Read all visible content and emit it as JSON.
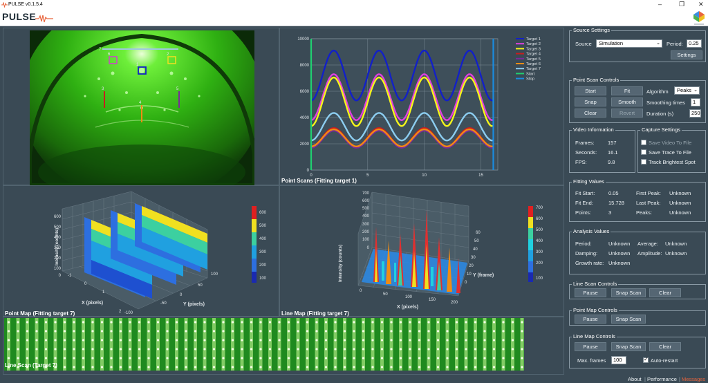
{
  "window": {
    "title": "PULSE v0.1.5.4",
    "minimize": "–",
    "restore": "❐",
    "close": "✕"
  },
  "app": {
    "name": "PULSE"
  },
  "video": {
    "target_labels": [
      "7",
      "6",
      "1",
      "2",
      "3",
      "4",
      "5"
    ]
  },
  "point_scan_chart": {
    "caption": "Point Scans (Fitting target 1)"
  },
  "chart_data": [
    {
      "type": "line",
      "title": "",
      "xlabel": "",
      "ylabel": "",
      "xlim": [
        0,
        16.5
      ],
      "ylim": [
        0,
        10000
      ],
      "xticks": [
        0,
        5,
        10,
        15
      ],
      "yticks": [
        0,
        2000,
        4000,
        6000,
        8000,
        10000
      ],
      "grid": true,
      "legend_position": "right",
      "series": [
        {
          "name": "Target 1",
          "color": "#1220c8",
          "mean": 7200,
          "amp": 1900
        },
        {
          "name": "Target 2",
          "color": "#e040e0",
          "mean": 5550,
          "amp": 1750
        },
        {
          "name": "Target 3",
          "color": "#f5f51a",
          "mean": 5200,
          "amp": 1850
        },
        {
          "name": "Target 4",
          "color": "#c81e1e",
          "mean": 2500,
          "amp": 700
        },
        {
          "name": "Target 5",
          "color": "#7a2a9a",
          "mean": 2350,
          "amp": 650
        },
        {
          "name": "Target 6",
          "color": "#f08c14",
          "mean": 2450,
          "amp": 650
        },
        {
          "name": "Target 7",
          "color": "#8ccdf0",
          "mean": 3300,
          "amp": 1050
        },
        {
          "name": "Start",
          "color": "#20d070",
          "x": 0
        },
        {
          "name": "Stop",
          "color": "#1a8ce0",
          "x": 16.1
        }
      ],
      "period": 4.0
    },
    {
      "type": "surface3d",
      "name": "point-map",
      "xlabel": "X (pixels)",
      "ylabel": "Y (pixels)",
      "zlabel": "Intensity (counts)",
      "xticks": [
        -1,
        0,
        1,
        2
      ],
      "yticks": [
        -100,
        -50,
        0,
        50,
        100
      ],
      "zticks": [
        0,
        100,
        200,
        300,
        400,
        500,
        600
      ],
      "colorbar_ticks": [
        100,
        200,
        300,
        400,
        500,
        600
      ]
    },
    {
      "type": "surface3d",
      "name": "line-map",
      "xlabel": "X (pixels)",
      "ylabel": "Y (frame)",
      "zlabel": "Intensity (counts)",
      "xticks": [
        0,
        50,
        100,
        150,
        200
      ],
      "yticks": [
        0,
        10,
        20,
        30,
        40,
        50,
        60
      ],
      "zticks": [
        0,
        100,
        200,
        300,
        400,
        500,
        600,
        700
      ],
      "colorbar_ticks": [
        100,
        200,
        300,
        400,
        500,
        600,
        700
      ]
    }
  ],
  "captions": {
    "point_map": "Point Map (Fitting target 7)",
    "line_map": "Line Map (Fitting target 7)",
    "line_scan": "Line Scan (Target 7)"
  },
  "source_settings": {
    "title": "Source Settings",
    "source_label": "Source",
    "source_value": "Simulation",
    "period_label": "Period:",
    "period_value": "0.25",
    "settings_button": "Settings"
  },
  "point_scan_controls": {
    "title": "Point Scan Controls",
    "start": "Start",
    "fit": "Fit",
    "snap": "Snap",
    "smooth": "Smooth",
    "clear": "Clear",
    "revert": "Revert",
    "algorithm_label": "Algorithm",
    "algorithm_value": "Peaks",
    "smoothing_label": "Smoothing times",
    "smoothing_value": "1",
    "duration_label": "Duration (s)",
    "duration_value": "250"
  },
  "video_information": {
    "title": "Video Information",
    "frames_label": "Frames:",
    "frames_value": "157",
    "seconds_label": "Seconds:",
    "seconds_value": "16.1",
    "fps_label": "FPS:",
    "fps_value": "9.8"
  },
  "capture_settings": {
    "title": "Capture Settings",
    "save_video": "Save Video To File",
    "save_trace": "Save Trace To File",
    "track_brightest": "Track Brightest Spot"
  },
  "fitting_values": {
    "title": "Fitting Values",
    "fit_start_label": "Fit Start:",
    "fit_start_value": "0.05",
    "fit_end_label": "Fit End:",
    "fit_end_value": "15.728",
    "points_label": "Points:",
    "points_value": "3",
    "first_peak_label": "First Peak:",
    "first_peak_value": "Unknown",
    "last_peak_label": "Last Peak:",
    "last_peak_value": "Unknown",
    "peaks_label": "Peaks:",
    "peaks_value": "Unknown"
  },
  "analysis_values": {
    "title": "Analysis Values",
    "period_label": "Period:",
    "period_value": "Unknown",
    "average_label": "Average:",
    "average_value": "Unknown",
    "damping_label": "Damping:",
    "damping_value": "Unknown",
    "amplitude_label": "Amplitude:",
    "amplitude_value": "Unknown",
    "growth_label": "Growth rate:",
    "growth_value": "Unknown"
  },
  "line_scan_controls": {
    "title": "Line Scan Controls",
    "pause": "Pause",
    "snap_scan": "Snap Scan",
    "clear": "Clear"
  },
  "point_map_controls": {
    "title": "Point Map Controls",
    "pause": "Pause",
    "snap_scan": "Snap Scan"
  },
  "line_map_controls": {
    "title": "Line Map Controls",
    "pause": "Pause",
    "snap_scan": "Snap Scan",
    "clear": "Clear",
    "max_frames_label": "Max. frames",
    "max_frames_value": "100",
    "auto_restart": "Auto-restart"
  },
  "footer": {
    "about": "About",
    "separator": "|",
    "performance": "Performance",
    "messages": "Messages"
  },
  "colors": {
    "accent_messages": "#e8643c",
    "bg": "#3a4a55"
  }
}
